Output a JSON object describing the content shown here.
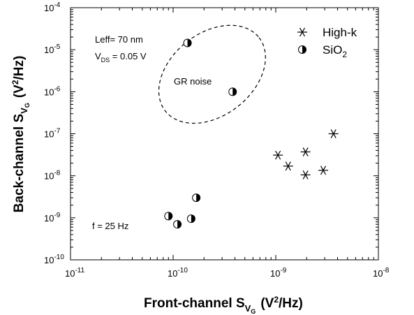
{
  "chart_data": {
    "type": "scatter",
    "title": "",
    "xlabel": {
      "main": "Front-channel S",
      "sub": "V",
      "subsub": "G",
      "unit_pre": "(V",
      "unit_sup": "2",
      "unit_post": "/Hz)"
    },
    "ylabel": {
      "main": "Back-channel S",
      "sub": "V",
      "subsub": "G",
      "unit_pre": "(V",
      "unit_sup": "2",
      "unit_post": "/Hz)"
    },
    "x_scale": "log",
    "y_scale": "log",
    "xlim": [
      1e-11,
      1e-08
    ],
    "ylim": [
      1e-10,
      0.0001
    ],
    "x_ticks": [
      {
        "value": 1e-11,
        "base": "10",
        "exp": "-11"
      },
      {
        "value": 1e-10,
        "base": "10",
        "exp": "-10"
      },
      {
        "value": 1e-09,
        "base": "10",
        "exp": "-9"
      },
      {
        "value": 1e-08,
        "base": "10",
        "exp": "-8"
      }
    ],
    "y_ticks": [
      {
        "value": 1e-10,
        "base": "10",
        "exp": "-10"
      },
      {
        "value": 1e-09,
        "base": "10",
        "exp": "-9"
      },
      {
        "value": 1e-08,
        "base": "10",
        "exp": "-8"
      },
      {
        "value": 1e-07,
        "base": "10",
        "exp": "-7"
      },
      {
        "value": 1e-06,
        "base": "10",
        "exp": "-6"
      },
      {
        "value": 1e-05,
        "base": "10",
        "exp": "-5"
      },
      {
        "value": 0.0001,
        "base": "10",
        "exp": "-4"
      }
    ],
    "grid": false,
    "legend_position": "top-right",
    "series": [
      {
        "name": "High-k",
        "marker": "asterisk",
        "points": [
          {
            "x": 1.05e-09,
            "y": 3.1e-08
          },
          {
            "x": 1.32e-09,
            "y": 1.7e-08
          },
          {
            "x": 1.95e-09,
            "y": 3.7e-08
          },
          {
            "x": 1.95e-09,
            "y": 1.05e-08
          },
          {
            "x": 2.9e-09,
            "y": 1.35e-08
          },
          {
            "x": 3.65e-09,
            "y": 1e-07
          }
        ]
      },
      {
        "name": "SiO",
        "name_sub": "2",
        "marker": "half-filled-circle",
        "points": [
          {
            "x": 1.38e-10,
            "y": 1.45e-05
          },
          {
            "x": 3.8e-10,
            "y": 1e-06
          },
          {
            "x": 9e-11,
            "y": 1.1e-09
          },
          {
            "x": 1.1e-10,
            "y": 7e-10
          },
          {
            "x": 1.5e-10,
            "y": 9.5e-10
          },
          {
            "x": 1.68e-10,
            "y": 3e-09
          }
        ]
      }
    ],
    "annotations": {
      "leff": "Leff= 70 nm",
      "vds_main": "V",
      "vds_sub": "DS",
      "vds_value": " = 0.05 V",
      "gr_noise": "GR noise",
      "freq": "f = 25 Hz"
    },
    "gr_region": {
      "x_center": 2.4e-10,
      "y_center": 2.6e-06,
      "rx_decades": 0.58,
      "ry_decades": 0.98,
      "rotation_deg": 38
    }
  }
}
